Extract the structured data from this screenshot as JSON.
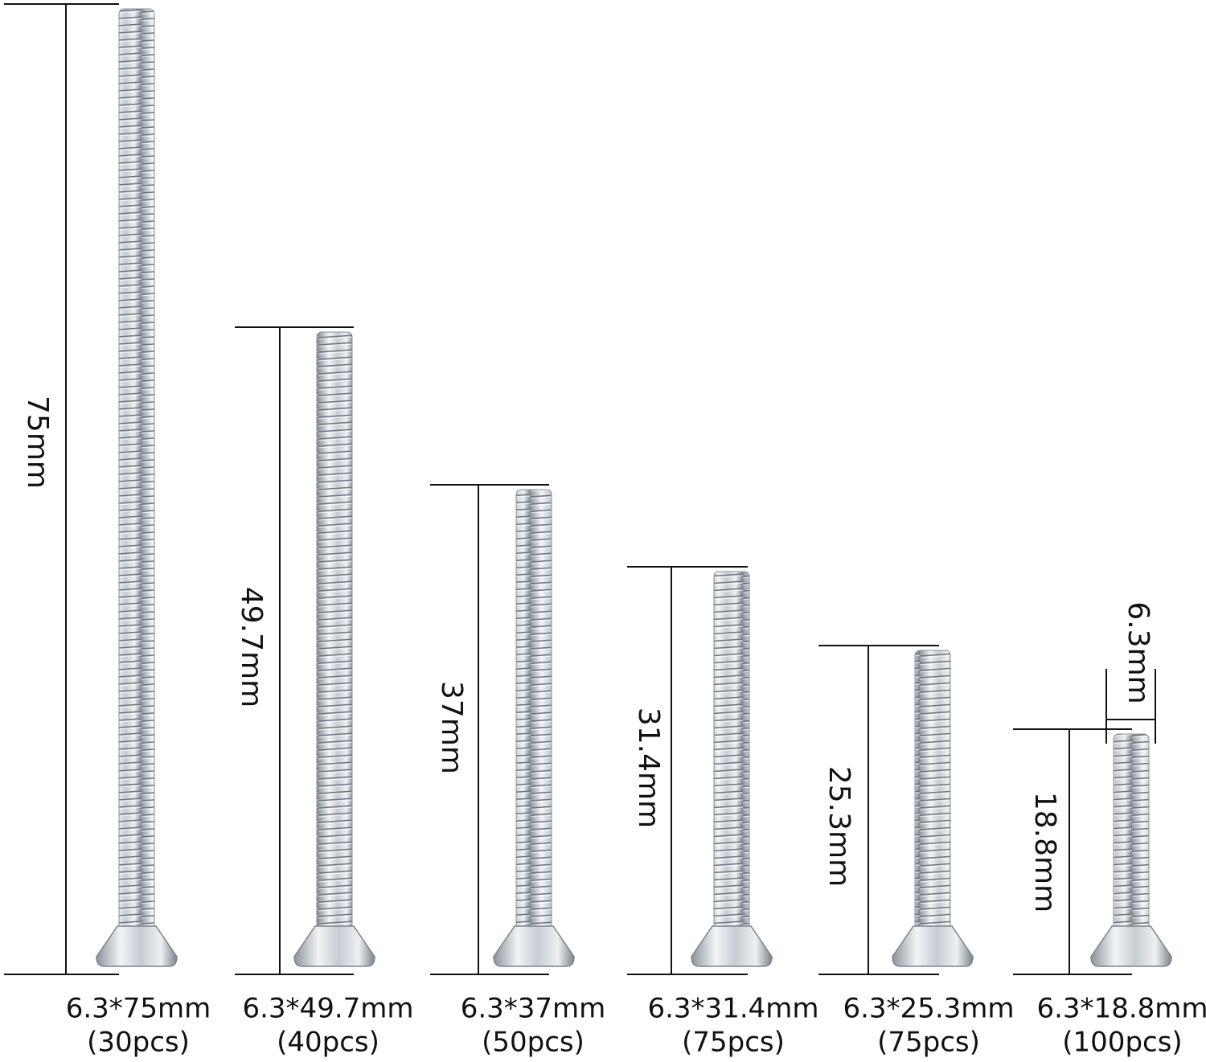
{
  "items": [
    {
      "length": "75mm",
      "name": "6.3*75mm",
      "count": "(30pcs)"
    },
    {
      "length": "49.7mm",
      "name": "6.3*49.7mm",
      "count": "(40pcs)"
    },
    {
      "length": "37mm",
      "name": "6.3*37mm",
      "count": "(50pcs)"
    },
    {
      "length": "31.4mm",
      "name": "6.3*31.4mm",
      "count": "(75pcs)"
    },
    {
      "length": "25.3mm",
      "name": "6.3*25.3mm",
      "count": "(75pcs)"
    },
    {
      "length": "18.8mm",
      "name": "6.3*18.8mm",
      "count": "(100pcs)"
    }
  ],
  "diameter": "6.3mm"
}
